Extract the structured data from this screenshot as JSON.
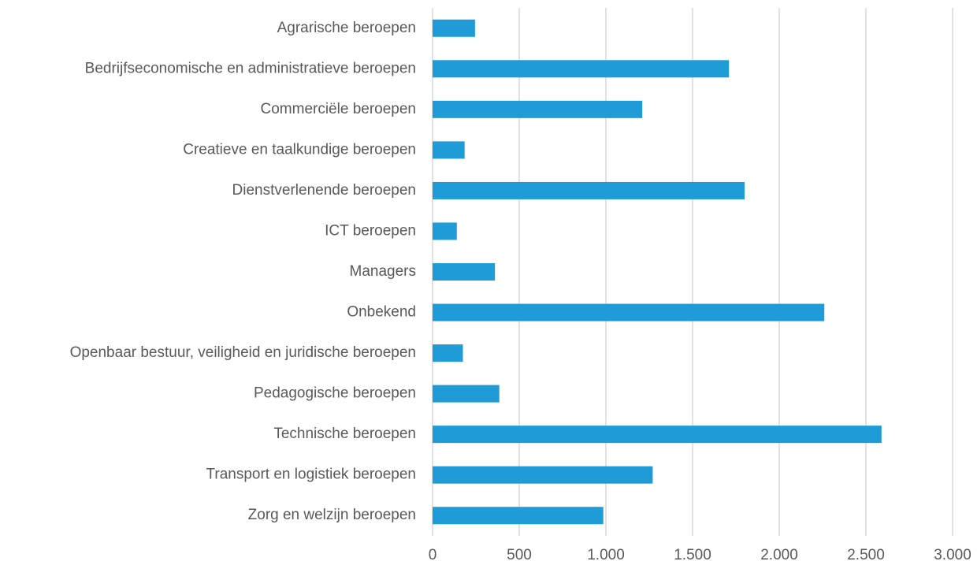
{
  "chart_data": {
    "type": "hbar",
    "categories": [
      "Agrarische beroepen",
      "Bedrijfseconomische en administratieve beroepen",
      "Commerciële beroepen",
      "Creatieve en taalkundige beroepen",
      "Dienstverlenende beroepen",
      "ICT beroepen",
      "Managers",
      "Onbekend",
      "Openbaar bestuur, veiligheid en juridische beroepen",
      "Pedagogische beroepen",
      "Technische beroepen",
      "Transport en logistiek beroepen",
      "Zorg en welzijn beroepen"
    ],
    "values": [
      245,
      1710,
      1210,
      185,
      1800,
      140,
      360,
      2260,
      175,
      385,
      2590,
      1270,
      985
    ],
    "color": "#1f9bd8",
    "xlim": [
      0,
      3000
    ],
    "xticks": [
      0,
      500,
      {
        "value": 1000,
        "label": "1.000"
      },
      {
        "value": 1500,
        "label": "1.500"
      },
      {
        "value": 2000,
        "label": "2.000"
      },
      {
        "value": 2500,
        "label": "2.500"
      },
      {
        "value": 3000,
        "label": "3.000"
      }
    ],
    "grid": true
  }
}
